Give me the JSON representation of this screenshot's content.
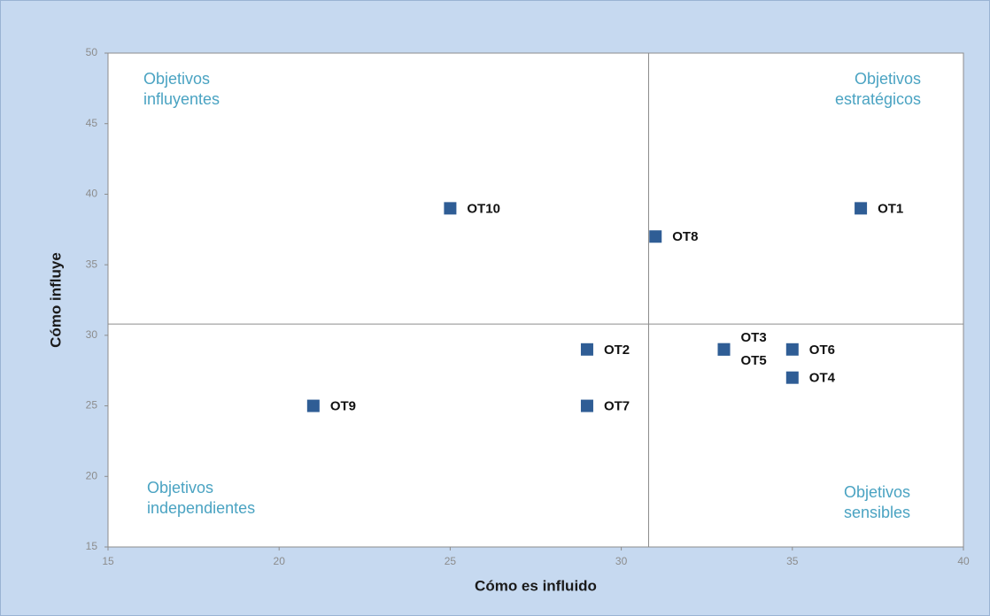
{
  "chart_data": {
    "type": "scatter",
    "x_label": "Cómo es influido",
    "y_label": "Cómo influye",
    "xlim": [
      15,
      40
    ],
    "ylim": [
      15,
      50
    ],
    "xticks": [
      15,
      20,
      25,
      30,
      35,
      40
    ],
    "yticks": [
      15,
      20,
      25,
      30,
      35,
      40,
      45,
      50
    ],
    "dividers": {
      "x": 30.8,
      "y": 30.8
    },
    "series": [
      {
        "color": "#2f5d95",
        "labels": [
          "OT1",
          "OT2",
          "OT3",
          "OT4",
          "OT5",
          "OT6",
          "OT7",
          "OT8",
          "OT9",
          "OT10"
        ],
        "x": [
          37,
          29,
          33,
          35,
          33,
          35,
          29,
          31,
          21,
          25
        ],
        "values": [
          39,
          29,
          29,
          27,
          29,
          29,
          25,
          37,
          25,
          39
        ]
      }
    ],
    "annotations": [
      {
        "lines": [
          "Objetivos",
          "influyentes"
        ]
      },
      {
        "lines": [
          "Objetivos",
          "estratégicos"
        ]
      },
      {
        "lines": [
          "Objetivos",
          "independientes"
        ]
      },
      {
        "lines": [
          "Objetivos",
          "sensibles"
        ]
      }
    ]
  }
}
